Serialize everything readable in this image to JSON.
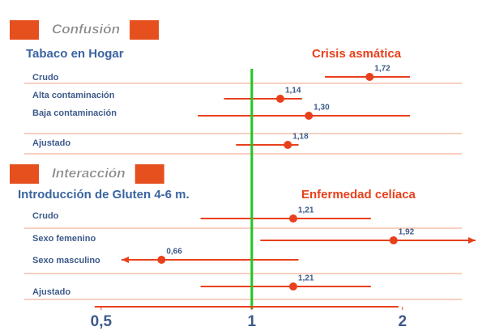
{
  "chart_data": {
    "type": "forest",
    "xscale": "log",
    "xlim": [
      0.4,
      2.8
    ],
    "xticks": [
      {
        "value": 0.5,
        "label": "0,5"
      },
      1,
      2
    ],
    "ref_line": 1,
    "ref_color": "#22c522",
    "color": "#e8401c",
    "sections": [
      {
        "header": "Confusión",
        "title": "Tabaco en Hogar",
        "outcome": "Crisis asmática",
        "categories": [
          "Crudo",
          "Alta contaminación",
          "Baja contaminación",
          "Ajustado"
        ],
        "values": [
          1.72,
          1.14,
          1.3,
          1.18
        ],
        "value_labels": [
          "1,72",
          "1,14",
          "1,30",
          "1,18"
        ],
        "lower": [
          1.4,
          0.88,
          0.78,
          0.93
        ],
        "upper": [
          2.07,
          1.26,
          2.07,
          1.24
        ]
      },
      {
        "header": "Interacción",
        "title": "Introducción de Gluten 4-6 m.",
        "outcome": "Enfermedad celíaca",
        "categories": [
          "Crudo",
          "Sexo femenino",
          "Sexo masculino",
          "Ajustado"
        ],
        "values": [
          1.21,
          1.92,
          0.66,
          1.21
        ],
        "value_labels": [
          "1,21",
          "1,92",
          "0,66",
          "1,21"
        ],
        "lower": [
          0.79,
          1.04,
          null,
          0.79
        ],
        "upper": [
          1.73,
          null,
          1.24,
          1.73
        ]
      }
    ]
  }
}
